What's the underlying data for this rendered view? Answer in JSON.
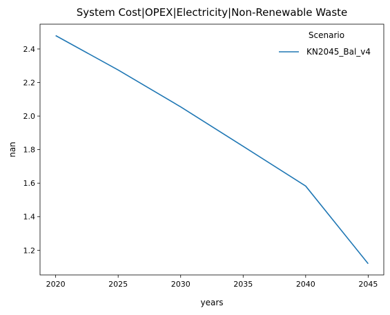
{
  "chart_data": {
    "type": "line",
    "title": "System Cost|OPEX|Electricity|Non-Renewable Waste",
    "xlabel": "years",
    "ylabel": "nan",
    "x": [
      2020,
      2025,
      2030,
      2035,
      2040,
      2045
    ],
    "xticks": [
      "2020",
      "2025",
      "2030",
      "2035",
      "2040",
      "2045"
    ],
    "yticks": [
      "1.2",
      "1.4",
      "1.6",
      "1.8",
      "2.0",
      "2.2",
      "2.4"
    ],
    "xlim": [
      2018.75,
      2046.25
    ],
    "ylim": [
      1.053,
      2.548
    ],
    "grid": false,
    "legend": {
      "title": "Scenario",
      "position": "top-right"
    },
    "series": [
      {
        "name": "KN2045_Bal_v4",
        "color": "#1f77b4",
        "values": [
          2.48,
          2.275,
          2.055,
          1.82,
          1.583,
          1.12
        ]
      }
    ]
  }
}
